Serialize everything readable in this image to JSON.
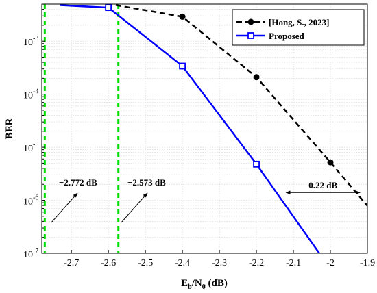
{
  "chart_data": {
    "type": "line",
    "xlabel": "E",
    "xlabel_sub1": "b",
    "xlabel_mid": "/N",
    "xlabel_sub2": "0",
    "xlabel_tail": " (dB)",
    "ylabel": "BER",
    "xlim": [
      -2.78,
      -1.9
    ],
    "ylim_log10": [
      -7,
      -2.3
    ],
    "y_scale": "log",
    "grid": true,
    "x_ticks": [
      -2.7,
      -2.6,
      -2.5,
      -2.4,
      -2.3,
      -2.2,
      -2.1,
      -2.0,
      -1.9
    ],
    "x_tick_labels": [
      "-2.7",
      "-2.6",
      "-2.5",
      "-2.4",
      "-2.3",
      "-2.2",
      "-2.1",
      "-2",
      "-1.9"
    ],
    "y_ticks": [
      {
        "exp": -3,
        "base": "10",
        "sup": "-3"
      },
      {
        "exp": -4,
        "base": "10",
        "sup": "-4"
      },
      {
        "exp": -5,
        "base": "10",
        "sup": "-5"
      },
      {
        "exp": -6,
        "base": "10",
        "sup": "-6"
      },
      {
        "exp": -7,
        "base": "10",
        "sup": "-7"
      }
    ],
    "legend_position": "top-right",
    "series": [
      {
        "name": "[Hong, S., 2023]",
        "color": "#000000",
        "dash": "dashed",
        "marker": "circle",
        "x": [
          -2.6,
          -2.4,
          -2.2,
          -2.0
        ],
        "y": [
          0.0043,
          0.0029,
          0.00021,
          5.2e-06
        ],
        "line_points": {
          "x": [
            -2.58,
            -2.4,
            -2.2,
            -2.0,
            -1.89
          ],
          "y": [
            0.0048,
            0.0029,
            0.00021,
            5.2e-06,
            6.5e-07
          ]
        }
      },
      {
        "name": "Proposed",
        "color": "#0000ff",
        "dash": "solid",
        "marker": "square",
        "x": [
          -2.6,
          -2.4,
          -2.2
        ],
        "y": [
          0.0043,
          0.00034,
          4.8e-06
        ],
        "line_points": {
          "x": [
            -2.73,
            -2.6,
            -2.4,
            -2.2,
            -2.03
          ],
          "y": [
            0.0048,
            0.0043,
            0.00034,
            4.8e-06,
            1e-07
          ]
        }
      }
    ],
    "vertical_lines": [
      {
        "x": -2.772,
        "color": "#00dd00",
        "label": "−2.772 dB"
      },
      {
        "x": -2.573,
        "color": "#00dd00",
        "label": "−2.573 dB"
      }
    ],
    "gap_annotation": {
      "label": "0.22 dB",
      "x_from": -2.12,
      "x_to": -1.92,
      "y": 1.4e-06
    }
  }
}
